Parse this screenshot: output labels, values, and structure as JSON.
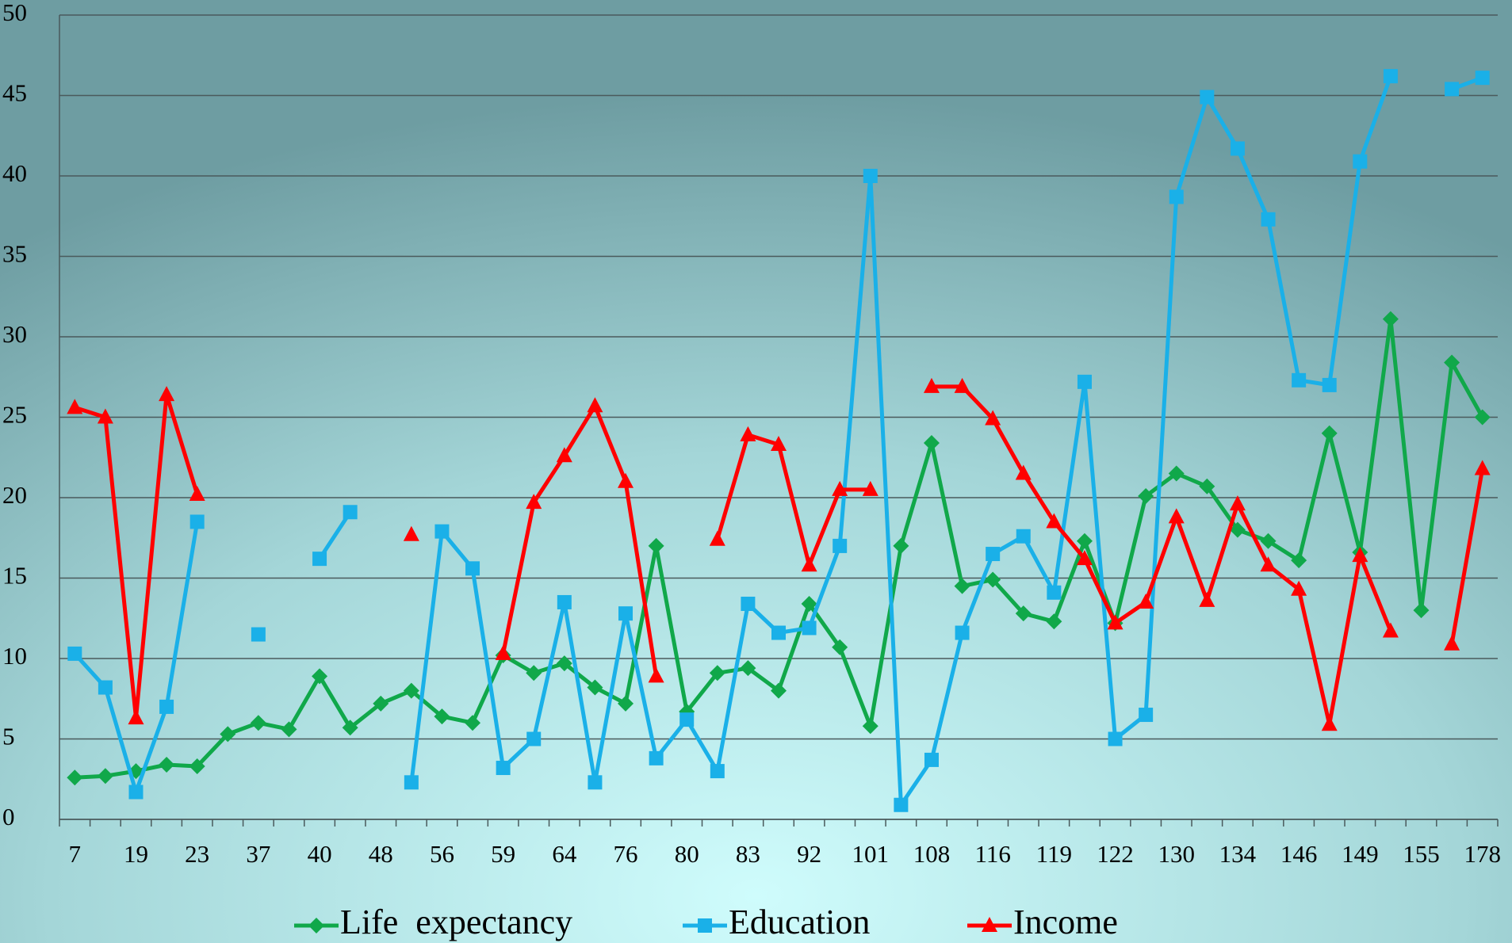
{
  "chart_data": {
    "type": "line",
    "categories": [
      "7",
      null,
      "19",
      null,
      "23",
      null,
      "37",
      null,
      "40",
      null,
      "48",
      null,
      "56",
      null,
      "59",
      null,
      "64",
      null,
      "76",
      null,
      "80",
      null,
      "83",
      null,
      "92",
      null,
      "101",
      null,
      "108",
      null,
      "116",
      null,
      "119",
      null,
      "122",
      null,
      "130",
      null,
      "134",
      null,
      "146",
      null,
      "149",
      null,
      "155",
      null,
      "178"
    ],
    "series": [
      {
        "name": "Life  expectancy",
        "color": "#10a84a",
        "marker": "diamond",
        "values": [
          2.6,
          2.7,
          3.0,
          3.4,
          3.3,
          5.3,
          6.0,
          5.6,
          8.9,
          5.7,
          7.2,
          8.0,
          6.4,
          6.0,
          10.2,
          9.1,
          9.7,
          8.2,
          7.2,
          17.0,
          6.7,
          9.1,
          9.4,
          8.0,
          13.4,
          10.7,
          5.8,
          17.0,
          23.4,
          14.5,
          14.9,
          12.8,
          12.3,
          17.3,
          12.2,
          20.1,
          21.5,
          20.7,
          18.0,
          17.3,
          16.1,
          24.0,
          16.6,
          31.1,
          13.0,
          28.4,
          25.0
        ]
      },
      {
        "name": "Education",
        "color": "#1ab0e8",
        "marker": "square",
        "values": [
          10.3,
          8.2,
          1.7,
          7.0,
          18.5,
          null,
          11.5,
          null,
          16.2,
          19.1,
          null,
          2.3,
          17.9,
          15.6,
          3.2,
          5.0,
          13.5,
          2.3,
          12.8,
          3.8,
          6.2,
          3.0,
          13.4,
          11.6,
          11.9,
          17.0,
          40.0,
          0.9,
          3.7,
          11.6,
          16.5,
          17.6,
          14.1,
          27.2,
          5.0,
          6.5,
          38.7,
          44.9,
          41.7,
          37.3,
          27.3,
          27.0,
          40.9,
          46.2,
          null,
          45.4,
          46.1
        ]
      },
      {
        "name": "Income",
        "color": "#ff0000",
        "marker": "triangle",
        "values": [
          25.6,
          25.0,
          6.3,
          26.4,
          20.2,
          null,
          null,
          null,
          null,
          null,
          null,
          17.7,
          null,
          null,
          10.3,
          19.7,
          22.6,
          25.7,
          21.0,
          8.9,
          null,
          17.4,
          23.9,
          23.3,
          15.8,
          20.5,
          20.5,
          null,
          26.9,
          26.9,
          24.9,
          21.5,
          18.5,
          16.2,
          12.2,
          13.5,
          18.8,
          13.6,
          19.6,
          15.8,
          14.3,
          5.9,
          16.4,
          11.7,
          null,
          10.9,
          21.8
        ]
      }
    ],
    "ylim": [
      0,
      50
    ],
    "yticks": [
      0,
      5,
      10,
      15,
      20,
      25,
      30,
      35,
      40,
      45,
      50
    ],
    "grid": true,
    "legend": "bottom"
  }
}
